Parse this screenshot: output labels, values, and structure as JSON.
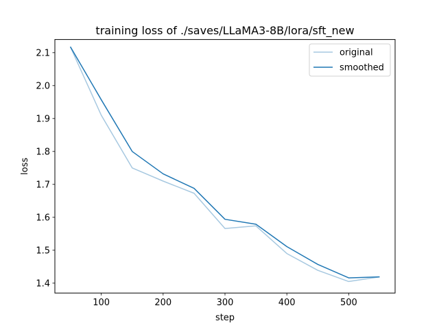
{
  "chart_data": {
    "type": "line",
    "title": "training loss of ./saves/LLaMA3-8B/lora/sft_new",
    "xlabel": "step",
    "ylabel": "loss",
    "xlim": [
      25,
      575
    ],
    "ylim": [
      1.37,
      2.14
    ],
    "x_ticks": [
      100,
      200,
      300,
      400,
      500
    ],
    "y_ticks": [
      1.4,
      1.5,
      1.6,
      1.7,
      1.8,
      1.9,
      2.0,
      2.1
    ],
    "x_tick_labels": [
      "100",
      "200",
      "300",
      "400",
      "500"
    ],
    "y_tick_labels": [
      "1.4",
      "1.5",
      "1.6",
      "1.7",
      "1.8",
      "1.9",
      "2.0",
      "2.1"
    ],
    "grid": false,
    "legend_position": "top-right",
    "x": [
      50,
      100,
      150,
      200,
      250,
      300,
      350,
      400,
      450,
      500,
      550
    ],
    "series": [
      {
        "name": "original",
        "color": "#a6c8e0",
        "values": [
          2.118,
          1.91,
          1.75,
          1.71,
          1.673,
          1.566,
          1.574,
          1.49,
          1.439,
          1.405,
          1.419
        ]
      },
      {
        "name": "smoothed",
        "color": "#1f77b4",
        "values": [
          2.118,
          1.957,
          1.8,
          1.732,
          1.688,
          1.594,
          1.579,
          1.511,
          1.457,
          1.416,
          1.419
        ]
      }
    ]
  }
}
